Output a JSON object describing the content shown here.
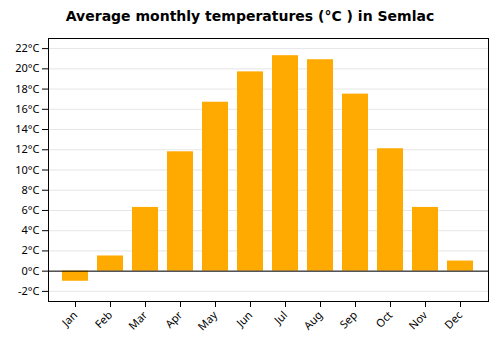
{
  "chart_data": {
    "type": "bar",
    "title": "Average monthly temperatures (°C ) in Semlac",
    "categories": [
      "Jan",
      "Feb",
      "Mar",
      "Apr",
      "May",
      "Jun",
      "Jul",
      "Aug",
      "Sep",
      "Oct",
      "Nov",
      "Dec"
    ],
    "values": [
      -1.0,
      1.5,
      6.3,
      11.8,
      16.7,
      19.7,
      21.3,
      20.9,
      17.5,
      12.1,
      6.3,
      1.0
    ],
    "color": "#FFAA00",
    "ylim": [
      -3,
      23
    ],
    "yticks": [
      {
        "value": -2,
        "label": "-2°C"
      },
      {
        "value": 0,
        "label": "0°C"
      },
      {
        "value": 2,
        "label": "2°C"
      },
      {
        "value": 4,
        "label": "4°C"
      },
      {
        "value": 6,
        "label": "6°C"
      },
      {
        "value": 8,
        "label": "8°C"
      },
      {
        "value": 10,
        "label": "10°C"
      },
      {
        "value": 12,
        "label": "12°C"
      },
      {
        "value": 14,
        "label": "14°C"
      },
      {
        "value": 16,
        "label": "16°C"
      },
      {
        "value": 18,
        "label": "18°C"
      },
      {
        "value": 20,
        "label": "20°C"
      },
      {
        "value": 22,
        "label": "22°C"
      }
    ],
    "grid": true
  }
}
